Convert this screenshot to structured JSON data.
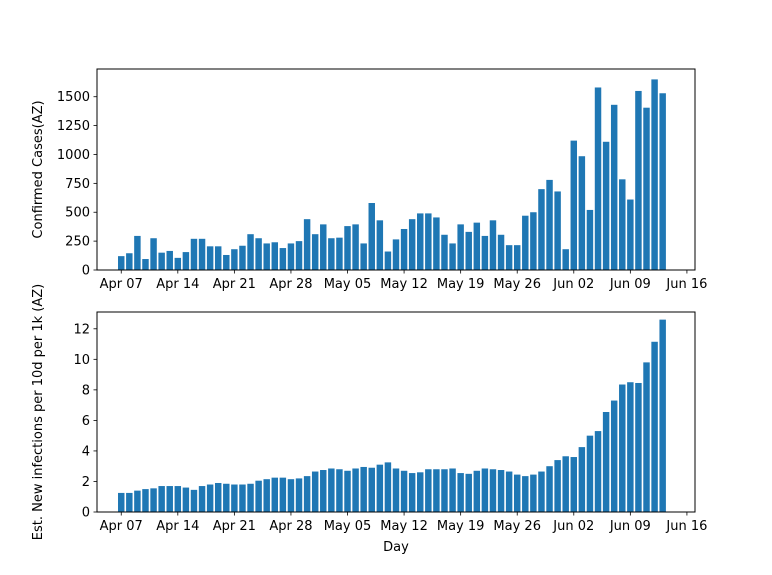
{
  "colors": {
    "bar": "#1f77b4",
    "axis": "#000000",
    "background": "#ffffff"
  },
  "chart_data": [
    {
      "type": "bar",
      "title": "",
      "xlabel": "",
      "ylabel": "Confirmed Cases(AZ)",
      "x_start": "Apr 07",
      "x_ticks": [
        "Apr 07",
        "Apr 14",
        "Apr 21",
        "Apr 28",
        "May 05",
        "May 12",
        "May 19",
        "May 26",
        "Jun 02",
        "Jun 09",
        "Jun 16"
      ],
      "xlim": [
        "Apr 04",
        "Jun 17"
      ],
      "y_ticks": [
        "0",
        "250",
        "500",
        "750",
        "1000",
        "1250",
        "1500"
      ],
      "ylim": [
        0,
        1740
      ],
      "grid": false,
      "values": [
        120,
        145,
        295,
        95,
        275,
        150,
        165,
        105,
        155,
        270,
        270,
        205,
        205,
        130,
        180,
        210,
        310,
        275,
        230,
        240,
        190,
        230,
        250,
        440,
        310,
        395,
        275,
        280,
        380,
        395,
        230,
        580,
        430,
        160,
        265,
        355,
        440,
        490,
        490,
        455,
        305,
        230,
        395,
        330,
        410,
        295,
        430,
        305,
        215,
        215,
        470,
        500,
        700,
        780,
        680,
        180,
        1120,
        985,
        520,
        1580,
        1110,
        1430,
        785,
        610,
        1550,
        1405,
        1650,
        1530
      ]
    },
    {
      "type": "bar",
      "title": "",
      "xlabel": "Day",
      "ylabel": "Est. New infections per 10d per 1k (AZ)",
      "x_start": "Apr 07",
      "x_ticks": [
        "Apr 07",
        "Apr 14",
        "Apr 21",
        "Apr 28",
        "May 05",
        "May 12",
        "May 19",
        "May 26",
        "Jun 02",
        "Jun 09",
        "Jun 16"
      ],
      "xlim": [
        "Apr 04",
        "Jun 17"
      ],
      "y_ticks": [
        "0",
        "2",
        "4",
        "6",
        "8",
        "10",
        "12"
      ],
      "ylim": [
        0,
        13.1
      ],
      "grid": false,
      "values": [
        1.25,
        1.25,
        1.4,
        1.5,
        1.55,
        1.7,
        1.7,
        1.7,
        1.6,
        1.45,
        1.7,
        1.8,
        1.9,
        1.85,
        1.8,
        1.8,
        1.85,
        2.05,
        2.15,
        2.25,
        2.25,
        2.15,
        2.2,
        2.35,
        2.65,
        2.75,
        2.85,
        2.8,
        2.7,
        2.85,
        2.95,
        2.9,
        3.1,
        3.25,
        2.85,
        2.7,
        2.55,
        2.6,
        2.8,
        2.8,
        2.8,
        2.85,
        2.55,
        2.5,
        2.7,
        2.85,
        2.8,
        2.75,
        2.65,
        2.45,
        2.35,
        2.45,
        2.65,
        3.0,
        3.4,
        3.65,
        3.6,
        4.25,
        5.0,
        5.3,
        6.55,
        7.3,
        8.35,
        8.5,
        8.45,
        9.8,
        11.15,
        12.6
      ]
    }
  ]
}
